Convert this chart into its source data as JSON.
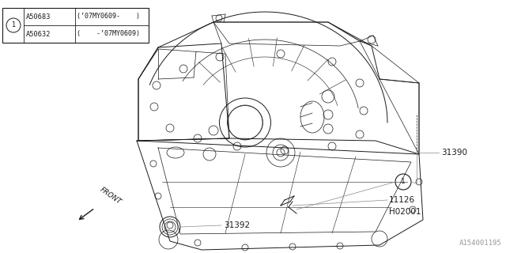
{
  "bg_color": "#ffffff",
  "line_color": "#1a1a1a",
  "gray_color": "#888888",
  "fig_width": 6.4,
  "fig_height": 3.2,
  "dpi": 100,
  "part_number_label": "A154001195",
  "parts_table": {
    "rows": [
      {
        "part": "A50632",
        "range": "(    -’07MY0609)"
      },
      {
        "part": "A50683",
        "range": "(’07MY0609-    )"
      }
    ]
  }
}
